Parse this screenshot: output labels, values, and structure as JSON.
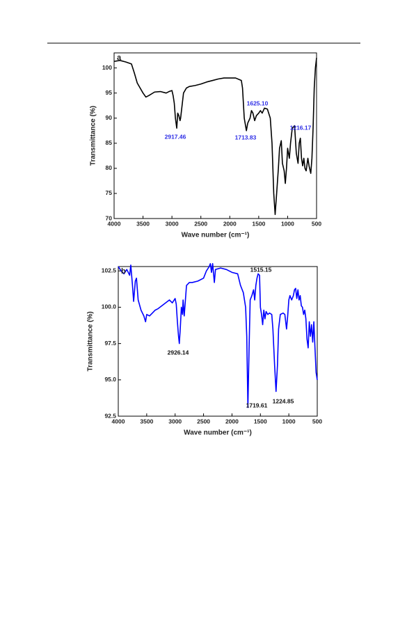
{
  "chart_data": [
    {
      "type": "line",
      "panel": "a",
      "xlabel": "Wave number (cm⁻¹)",
      "ylabel": "Transmittance (%)",
      "xlim": [
        4000,
        500
      ],
      "ylim": [
        70,
        103
      ],
      "xticks": [
        4000,
        3500,
        3000,
        2500,
        2000,
        1500,
        1000,
        500
      ],
      "yticks": [
        70,
        75,
        80,
        85,
        90,
        95,
        100
      ],
      "annotations": [
        "2917.46",
        "1713.83",
        "1625.10",
        "1216.17"
      ],
      "annotation_color": "#2e2ee6",
      "x": [
        4000,
        3900,
        3800,
        3700,
        3650,
        3600,
        3500,
        3450,
        3400,
        3300,
        3200,
        3100,
        3050,
        3000,
        2980,
        2960,
        2940,
        2917,
        2900,
        2880,
        2860,
        2850,
        2800,
        2750,
        2700,
        2600,
        2500,
        2400,
        2300,
        2200,
        2100,
        2000,
        1900,
        1800,
        1780,
        1750,
        1713,
        1690,
        1670,
        1650,
        1625,
        1600,
        1570,
        1540,
        1500,
        1470,
        1440,
        1400,
        1350,
        1300,
        1270,
        1240,
        1216,
        1190,
        1160,
        1140,
        1110,
        1090,
        1060,
        1040,
        1020,
        1000,
        970,
        950,
        920,
        880,
        850,
        820,
        800,
        780,
        760,
        740,
        720,
        700,
        680,
        650,
        630,
        600,
        580,
        560,
        540,
        520,
        500
      ],
      "series": [
        {
          "color": "#000000",
          "values": [
            101.3,
            101.5,
            101.2,
            100.8,
            99,
            97,
            95,
            94.2,
            94.5,
            95.2,
            95.3,
            95,
            95.3,
            95.5,
            94.5,
            93,
            90,
            88,
            91,
            90.5,
            89.5,
            90,
            95,
            96,
            96.3,
            96.5,
            96.8,
            97.2,
            97.5,
            97.8,
            98,
            98,
            98,
            97.5,
            96,
            90,
            87.5,
            89,
            89.5,
            90,
            91.5,
            91,
            89.5,
            90.5,
            91,
            91.5,
            91,
            92,
            91.8,
            90,
            85,
            75,
            70.8,
            75,
            80,
            84,
            85.5,
            81,
            79.5,
            77,
            80,
            84,
            82,
            85,
            88,
            88.5,
            83,
            81,
            85,
            86,
            82,
            80.5,
            82,
            80,
            79.5,
            82,
            80.5,
            79,
            82,
            88,
            96,
            100,
            102
          ]
        }
      ]
    },
    {
      "type": "line",
      "panel": "b",
      "xlabel": "Wave number (cm⁻¹)",
      "ylabel": "Transmittance (%)",
      "xlim": [
        4000,
        500
      ],
      "ylim": [
        92.5,
        102.8
      ],
      "xticks": [
        4000,
        3500,
        3000,
        2500,
        2000,
        1500,
        1000,
        500
      ],
      "yticks": [
        92.5,
        {
          "value": 95,
          "label": "95.0"
        },
        97.5,
        {
          "value": 100,
          "label": "100.0"
        },
        102.5
      ],
      "annotations": [
        "2926.14",
        "1719.61",
        "1515.15",
        "1224.85"
      ],
      "annotation_color": "#111111",
      "x": [
        4000,
        3950,
        3900,
        3850,
        3800,
        3780,
        3750,
        3730,
        3700,
        3680,
        3650,
        3600,
        3550,
        3520,
        3500,
        3450,
        3400,
        3350,
        3300,
        3200,
        3100,
        3050,
        3000,
        2980,
        2960,
        2940,
        2926,
        2910,
        2890,
        2870,
        2860,
        2840,
        2800,
        2750,
        2700,
        2600,
        2500,
        2450,
        2400,
        2380,
        2360,
        2340,
        2310,
        2290,
        2200,
        2100,
        2000,
        1900,
        1850,
        1800,
        1760,
        1740,
        1720,
        1700,
        1680,
        1650,
        1620,
        1600,
        1580,
        1560,
        1540,
        1515,
        1500,
        1480,
        1460,
        1440,
        1420,
        1400,
        1370,
        1340,
        1300,
        1280,
        1250,
        1225,
        1200,
        1180,
        1150,
        1100,
        1070,
        1040,
        1020,
        1000,
        980,
        950,
        920,
        900,
        880,
        860,
        840,
        820,
        800,
        780,
        760,
        740,
        720,
        700,
        680,
        660,
        640,
        620,
        600,
        580,
        560,
        540,
        520,
        500
      ],
      "series": [
        {
          "color": "#0000ff",
          "values": [
            102.8,
            102.5,
            102.3,
            102.6,
            102.2,
            102.9,
            101.5,
            100.4,
            101.8,
            102.0,
            100.5,
            99.8,
            99.4,
            99.0,
            99.5,
            99.4,
            99.6,
            99.8,
            99.9,
            100.2,
            100.5,
            100.3,
            100.6,
            100.2,
            99.0,
            98.0,
            97.5,
            98.5,
            100.0,
            99.5,
            100.5,
            99.4,
            101.5,
            101.7,
            101.7,
            101.8,
            102.0,
            102.5,
            102.8,
            103.0,
            102.4,
            103.0,
            101.7,
            102.6,
            102.7,
            102.6,
            102.4,
            102.3,
            101.5,
            101.0,
            100.0,
            98.0,
            93.1,
            97,
            100.5,
            100.8,
            101.2,
            100.5,
            101.5,
            102.0,
            102.3,
            102.2,
            100.0,
            99.5,
            98.8,
            99.8,
            99.2,
            99.7,
            99.5,
            99.6,
            99.5,
            98.5,
            96,
            94.2,
            96,
            98.5,
            99.5,
            99.6,
            99.5,
            98.5,
            99.4,
            100.5,
            100.8,
            100.5,
            100.8,
            101.2,
            101.3,
            100.6,
            101.2,
            100.5,
            100.8,
            100.1,
            100.0,
            99.5,
            99.8,
            99.2,
            97.8,
            97.2,
            99.0,
            98.0,
            98.8,
            97.6,
            99.0,
            97.2,
            95.5,
            95.0
          ]
        }
      ]
    }
  ]
}
